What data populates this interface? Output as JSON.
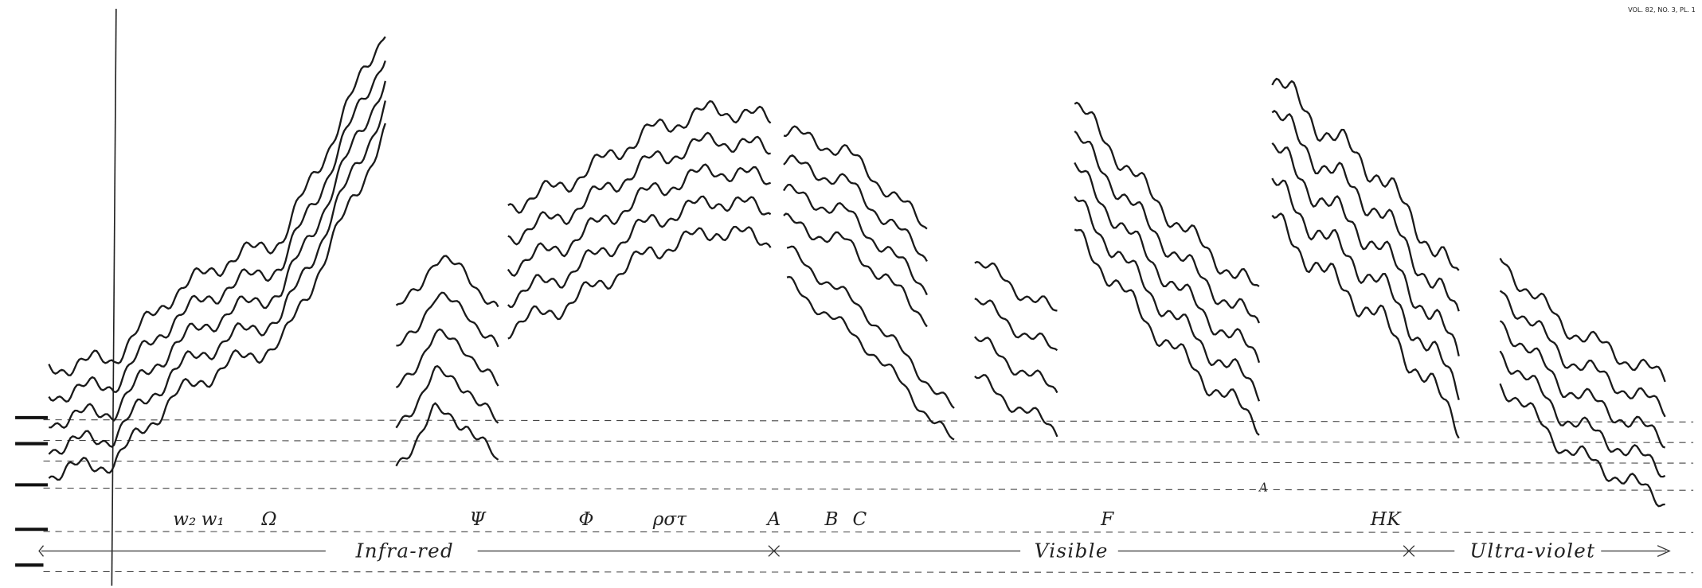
{
  "header": {
    "plate": "VOL. 82, NO. 3, PL. 1"
  },
  "line_labels": [
    "w₂",
    "w₁",
    "Ω",
    "Ψ",
    "Φ",
    "ρστ",
    "A",
    "B",
    "C",
    "F",
    "H",
    "K"
  ],
  "minor_label": "A",
  "regions": [
    "Infra-red",
    "Visible",
    "Ultra-violet"
  ]
}
